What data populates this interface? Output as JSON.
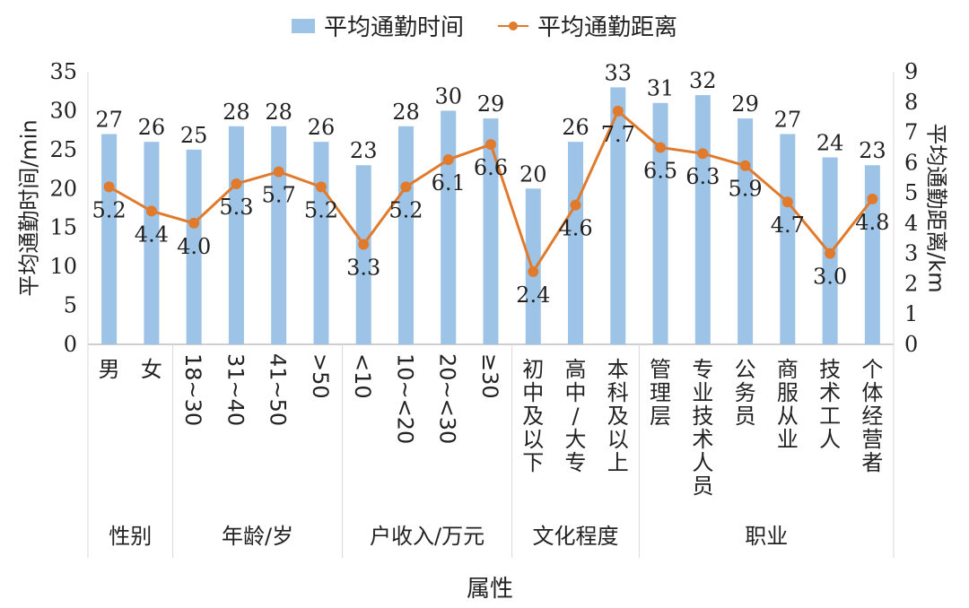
{
  "chart_data": {
    "type": "bar+line",
    "title": "",
    "xlabel": "属性",
    "ylabel": "平均通勤时间/min",
    "y2label": "平均通勤距离/km",
    "ylim": [
      0,
      35
    ],
    "y2lim": [
      0,
      9
    ],
    "yticks": [
      0,
      5,
      10,
      15,
      20,
      25,
      30,
      35
    ],
    "y2ticks": [
      0,
      1,
      2,
      3,
      4,
      5,
      6,
      7,
      8,
      9
    ],
    "legend": [
      "平均通勤时间",
      "平均通勤距离"
    ],
    "categories": [
      "男",
      "女",
      "18~30",
      "31~40",
      "41~50",
      ">50",
      "<10",
      "10~<20",
      "20~<30",
      "≥30",
      "初中及以下",
      "高中/大专",
      "本科及以上",
      "管理层",
      "专业技术人员",
      "公务员",
      "商服从业",
      "技术工人",
      "个体经营者"
    ],
    "category_groups": [
      {
        "name": "性别",
        "count": 2
      },
      {
        "name": "年龄/岁",
        "count": 4
      },
      {
        "name": "户收入/万元",
        "count": 4
      },
      {
        "name": "文化程度",
        "count": 3
      },
      {
        "name": "职业",
        "count": 6
      }
    ],
    "series": [
      {
        "name": "平均通勤时间",
        "type": "bar",
        "axis": "left",
        "color": "#9dc3e6",
        "values": [
          27,
          26,
          25,
          28,
          28,
          26,
          23,
          28,
          30,
          29,
          20,
          26,
          33,
          31,
          32,
          29,
          27,
          24,
          23
        ]
      },
      {
        "name": "平均通勤距离",
        "type": "line",
        "axis": "right",
        "color": "#e07b2e",
        "values": [
          5.2,
          4.4,
          4.0,
          5.3,
          5.7,
          5.2,
          3.3,
          5.2,
          6.1,
          6.6,
          2.4,
          4.6,
          7.7,
          6.5,
          6.3,
          5.9,
          4.7,
          3.0,
          4.8
        ]
      }
    ]
  }
}
